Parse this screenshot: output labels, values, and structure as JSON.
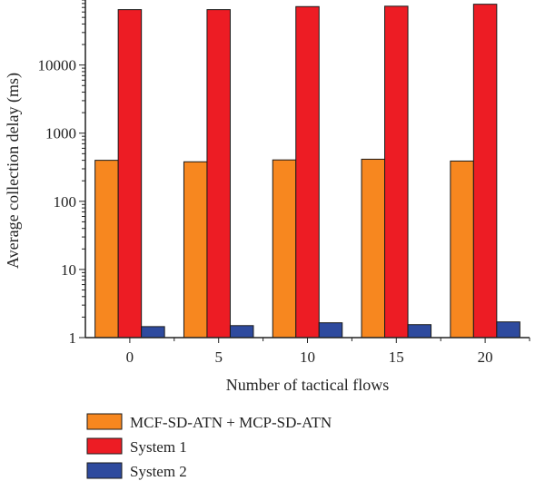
{
  "chart_data": {
    "type": "bar",
    "xlabel": "Number of tactical flows",
    "ylabel": "Average collection delay (ms)",
    "yscale": "log",
    "ylim": [
      1,
      90000
    ],
    "yticks": [
      1,
      10,
      100,
      1000,
      10000
    ],
    "ytick_labels": [
      "1",
      "10",
      "100",
      "1000",
      "10000"
    ],
    "categories": [
      "0",
      "5",
      "10",
      "15",
      "20"
    ],
    "series": [
      {
        "name": "MCF-SD-ATN + MCP-SD-ATN",
        "color": "#f7871f",
        "values": [
          400,
          380,
          405,
          415,
          390
        ]
      },
      {
        "name": "System 1",
        "color": "#ed1c24",
        "values": [
          65000,
          65000,
          72000,
          73000,
          78000
        ]
      },
      {
        "name": "System 2",
        "color": "#2e4a9e",
        "values": [
          1.45,
          1.5,
          1.65,
          1.55,
          1.7
        ]
      }
    ],
    "grid": false,
    "legend_position": "bottom-left"
  }
}
